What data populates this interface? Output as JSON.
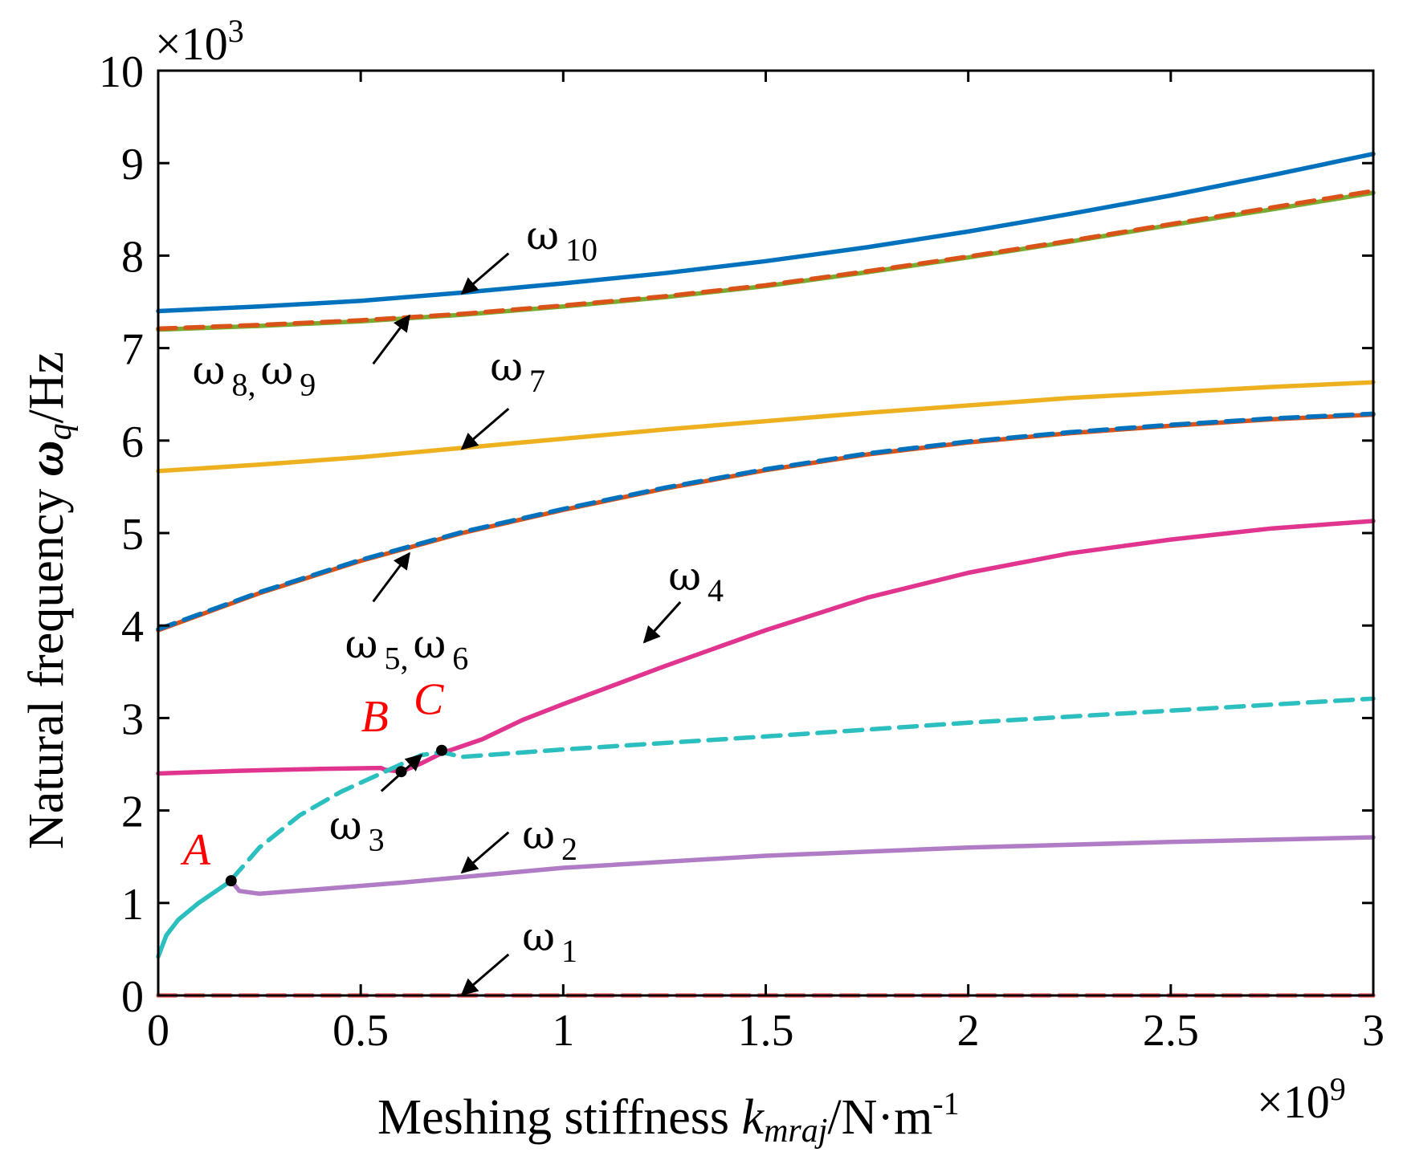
{
  "chart_data": {
    "type": "line",
    "title": "",
    "xlabel": "Meshing stiffness k_mraj/N·m^-1",
    "xlabel_parts": {
      "main": "Meshing stiffness ",
      "var": "k",
      "var_sub": "mraj",
      "unit": "/N·m",
      "unit_sup": "-1"
    },
    "ylabel": "Natural frequency ω_q/Hz",
    "ylabel_parts": {
      "main": "Natural frequency ",
      "var": "ω",
      "var_sub": "q",
      "unit": "/Hz"
    },
    "x_multiplier": {
      "base": "×10",
      "exp": "9"
    },
    "y_multiplier": {
      "base": "×10",
      "exp": "3"
    },
    "xlim": [
      0,
      3
    ],
    "ylim": [
      0,
      10
    ],
    "xticks": [
      0,
      0.5,
      1,
      1.5,
      2,
      2.5,
      3
    ],
    "xtick_labels": [
      "0",
      "0.5",
      "1",
      "1.5",
      "2",
      "2.5",
      "3"
    ],
    "yticks": [
      0,
      1,
      2,
      3,
      4,
      5,
      6,
      7,
      8,
      9,
      10
    ],
    "ytick_labels": [
      "0",
      "1",
      "2",
      "3",
      "4",
      "5",
      "6",
      "7",
      "8",
      "9",
      "10"
    ],
    "grid": false,
    "series": [
      {
        "name": "ω10",
        "color": "#0072bd",
        "dash": false,
        "x": [
          0,
          0.25,
          0.5,
          0.75,
          1.0,
          1.25,
          1.5,
          1.75,
          2.0,
          2.25,
          2.5,
          2.75,
          3.0
        ],
        "y": [
          7.4,
          7.45,
          7.51,
          7.6,
          7.7,
          7.81,
          7.94,
          8.09,
          8.26,
          8.45,
          8.65,
          8.87,
          9.1
        ]
      },
      {
        "name": "ω9",
        "color": "#77ac30",
        "dash": false,
        "x": [
          0,
          0.25,
          0.5,
          0.75,
          1.0,
          1.25,
          1.5,
          1.75,
          2.0,
          2.25,
          2.5,
          2.75,
          3.0
        ],
        "y": [
          7.2,
          7.24,
          7.29,
          7.36,
          7.45,
          7.55,
          7.67,
          7.82,
          7.98,
          8.15,
          8.33,
          8.5,
          8.68
        ]
      },
      {
        "name": "ω8",
        "color": "#d95319",
        "dash": true,
        "x": [
          0,
          0.25,
          0.5,
          0.75,
          1.0,
          1.25,
          1.5,
          1.75,
          2.0,
          2.25,
          2.5,
          2.75,
          3.0
        ],
        "y": [
          7.21,
          7.25,
          7.3,
          7.37,
          7.46,
          7.56,
          7.68,
          7.83,
          7.99,
          8.16,
          8.34,
          8.52,
          8.7
        ]
      },
      {
        "name": "ω7",
        "color": "#edb120",
        "dash": false,
        "x": [
          0,
          0.25,
          0.5,
          0.75,
          1.0,
          1.25,
          1.5,
          1.75,
          2.0,
          2.25,
          2.5,
          2.75,
          3.0
        ],
        "y": [
          5.67,
          5.74,
          5.82,
          5.92,
          6.02,
          6.12,
          6.21,
          6.3,
          6.38,
          6.46,
          6.52,
          6.58,
          6.63
        ]
      },
      {
        "name": "ω6",
        "color": "#d95319",
        "dash": false,
        "x": [
          0,
          0.25,
          0.5,
          0.75,
          1.0,
          1.25,
          1.5,
          1.75,
          2.0,
          2.25,
          2.5,
          2.75,
          3.0
        ],
        "y": [
          3.95,
          4.35,
          4.7,
          5.0,
          5.25,
          5.48,
          5.68,
          5.85,
          5.98,
          6.08,
          6.16,
          6.23,
          6.28
        ]
      },
      {
        "name": "ω5",
        "color": "#0072bd",
        "dash": true,
        "x": [
          0,
          0.25,
          0.5,
          0.75,
          1.0,
          1.25,
          1.5,
          1.75,
          2.0,
          2.25,
          2.5,
          2.75,
          3.0
        ],
        "y": [
          3.96,
          4.36,
          4.71,
          5.01,
          5.26,
          5.49,
          5.69,
          5.86,
          5.99,
          6.09,
          6.17,
          6.24,
          6.29
        ]
      },
      {
        "name": "ω4",
        "color": "#e0348f",
        "dash": false,
        "x": [
          0,
          0.2,
          0.4,
          0.55,
          0.56,
          0.6,
          0.65,
          0.7,
          0.8,
          0.9,
          1.0,
          1.25,
          1.5,
          1.75,
          2.0,
          2.25,
          2.5,
          2.75,
          3.0
        ],
        "y": [
          2.4,
          2.43,
          2.45,
          2.46,
          2.44,
          2.42,
          2.51,
          2.62,
          2.77,
          2.98,
          3.15,
          3.56,
          3.95,
          4.3,
          4.57,
          4.78,
          4.93,
          5.05,
          5.13
        ]
      },
      {
        "name": "ω3",
        "color": "#2bbfbf",
        "dash": true,
        "x": [
          0.18,
          0.25,
          0.35,
          0.45,
          0.56,
          0.65,
          0.7,
          0.75,
          1.0,
          1.5,
          2.0,
          2.5,
          3.0
        ],
        "y": [
          1.25,
          1.6,
          1.95,
          2.2,
          2.42,
          2.6,
          2.63,
          2.58,
          2.66,
          2.8,
          2.95,
          3.08,
          3.21
        ]
      },
      {
        "name": "ω3 (initial)",
        "color": "#2bbfbf",
        "dash": false,
        "x": [
          0,
          0.02,
          0.05,
          0.1,
          0.15,
          0.18
        ],
        "y": [
          0.42,
          0.65,
          0.82,
          1.0,
          1.15,
          1.24
        ]
      },
      {
        "name": "ω2",
        "color": "#b07cc6",
        "dash": false,
        "x": [
          0.18,
          0.2,
          0.25,
          0.4,
          0.6,
          0.8,
          1.0,
          1.5,
          2.0,
          2.5,
          3.0
        ],
        "y": [
          1.24,
          1.13,
          1.1,
          1.15,
          1.22,
          1.3,
          1.38,
          1.51,
          1.6,
          1.66,
          1.71
        ]
      },
      {
        "name": "ω1",
        "color": "#ff6b6b",
        "dash": true,
        "x": [
          0,
          3.0
        ],
        "y": [
          0,
          0
        ]
      }
    ],
    "points": [
      {
        "label": "A",
        "x": 0.18,
        "y": 1.24
      },
      {
        "label": "B",
        "x": 0.6,
        "y": 2.42
      },
      {
        "label": "C",
        "x": 0.7,
        "y": 2.65
      }
    ],
    "annotations": [
      {
        "text": "ω",
        "sub": "10",
        "tip": [
          0.75,
          7.59
        ]
      },
      {
        "text": "ω",
        "sub": "8,",
        "text2": "ω",
        "sub2": "9",
        "tip": [
          0.62,
          7.35
        ]
      },
      {
        "text": "ω",
        "sub": "7",
        "tip": [
          0.75,
          5.91
        ]
      },
      {
        "text": "ω",
        "sub": "5,",
        "text2": "ω",
        "sub2": "6",
        "tip": [
          0.62,
          4.78
        ]
      },
      {
        "text": "ω",
        "sub": "4",
        "tip": [
          1.2,
          3.82
        ]
      },
      {
        "text": "ω",
        "sub": "3",
        "tip": [
          0.65,
          2.6
        ]
      },
      {
        "text": "ω",
        "sub": "2",
        "tip": [
          0.75,
          1.33
        ]
      },
      {
        "text": "ω",
        "sub": "1",
        "tip": [
          0.75,
          0.01
        ]
      }
    ]
  }
}
